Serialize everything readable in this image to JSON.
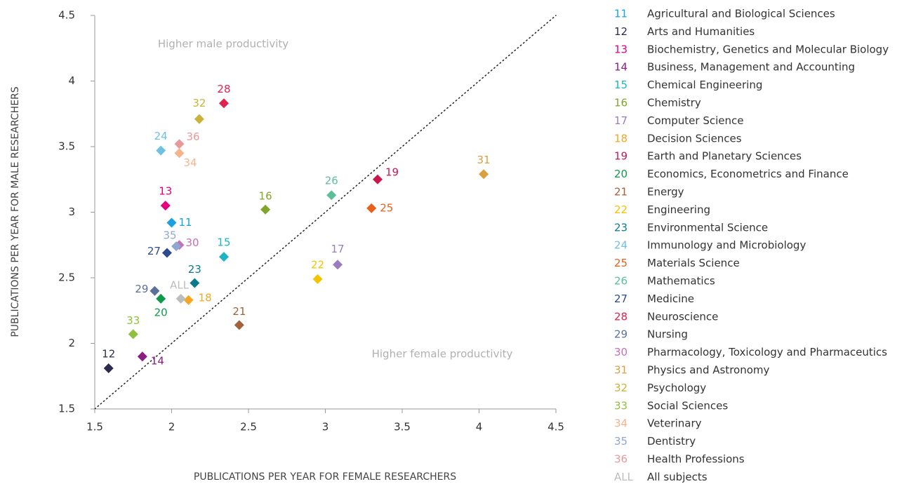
{
  "chart_data": {
    "type": "scatter",
    "x_label": "PUBLICATIONS PER YEAR FOR FEMALE RESEARCHERS",
    "y_label": "PUBLICATIONS PER YEAR FOR MALE RESEARCHERS",
    "annotations": [
      "Higher male productivity",
      "Higher female productivity"
    ],
    "xlim": [
      1.5,
      4.5
    ],
    "ylim": [
      1.5,
      4.5
    ],
    "xticks": [
      1.5,
      2,
      2.5,
      3,
      3.5,
      4,
      4.5
    ],
    "yticks": [
      1.5,
      2,
      2.5,
      3,
      3.5,
      4,
      4.5
    ],
    "series": [
      {
        "label": "11",
        "name": "Agricultural and Biological Sciences",
        "color": "#1ba1e2",
        "x": [
          2.0
        ],
        "values": [
          2.92
        ]
      },
      {
        "label": "12",
        "name": "Arts and Humanities",
        "color": "#2b2a4f",
        "x": [
          1.59
        ],
        "values": [
          1.81
        ]
      },
      {
        "label": "13",
        "name": "Biochemistry, Genetics and Molecular Biology",
        "color": "#e6007e",
        "x": [
          1.96
        ],
        "values": [
          3.05
        ]
      },
      {
        "label": "14",
        "name": "Business, Management and Accounting",
        "color": "#8b1d82",
        "x": [
          1.81
        ],
        "values": [
          1.9
        ]
      },
      {
        "label": "15",
        "name": "Chemical Engineering",
        "color": "#1bb5c4",
        "x": [
          2.34
        ],
        "values": [
          2.66
        ]
      },
      {
        "label": "16",
        "name": "Chemistry",
        "color": "#7fa52a",
        "x": [
          2.61
        ],
        "values": [
          3.02
        ]
      },
      {
        "label": "17",
        "name": "Computer Science",
        "color": "#9a7cbf",
        "x": [
          3.08
        ],
        "values": [
          2.6
        ]
      },
      {
        "label": "18",
        "name": "Decision Sciences",
        "color": "#f5a623",
        "x": [
          2.11
        ],
        "values": [
          2.33
        ]
      },
      {
        "label": "19",
        "name": "Earth and Planetary Sciences",
        "color": "#c8184e",
        "x": [
          3.34
        ],
        "values": [
          3.25
        ]
      },
      {
        "label": "20",
        "name": "Economics, Econometrics and Finance",
        "color": "#0f9a4a",
        "x": [
          1.93
        ],
        "values": [
          2.34
        ]
      },
      {
        "label": "21",
        "name": "Energy",
        "color": "#a0623b",
        "x": [
          2.44
        ],
        "values": [
          2.14
        ]
      },
      {
        "label": "22",
        "name": "Engineering",
        "color": "#f2c500",
        "x": [
          2.95
        ],
        "values": [
          2.49
        ]
      },
      {
        "label": "23",
        "name": "Environmental Science",
        "color": "#0a7a8c",
        "x": [
          2.15
        ],
        "values": [
          2.46
        ]
      },
      {
        "label": "24",
        "name": "Immunology and Microbiology",
        "color": "#6fc1e0",
        "x": [
          1.93
        ],
        "values": [
          3.47
        ]
      },
      {
        "label": "25",
        "name": "Materials Science",
        "color": "#e8601c",
        "x": [
          3.3
        ],
        "values": [
          3.03
        ]
      },
      {
        "label": "26",
        "name": "Mathematics",
        "color": "#5dbf9a",
        "x": [
          3.04
        ],
        "values": [
          3.13
        ]
      },
      {
        "label": "27",
        "name": "Medicine",
        "color": "#2e4a8f",
        "x": [
          1.97
        ],
        "values": [
          2.69
        ]
      },
      {
        "label": "28",
        "name": "Neuroscience",
        "color": "#e0234e",
        "x": [
          2.34
        ],
        "values": [
          3.83
        ]
      },
      {
        "label": "29",
        "name": "Nursing",
        "color": "#5a6f9a",
        "x": [
          1.89
        ],
        "values": [
          2.4
        ]
      },
      {
        "label": "30",
        "name": "Pharmacology, Toxicology and Pharmaceutics",
        "color": "#c76fb5",
        "x": [
          2.05
        ],
        "values": [
          2.75
        ]
      },
      {
        "label": "31",
        "name": "Physics and Astronomy",
        "color": "#d9a040",
        "x": [
          4.03
        ],
        "values": [
          3.29
        ]
      },
      {
        "label": "32",
        "name": "Psychology",
        "color": "#c9b33a",
        "x": [
          2.18
        ],
        "values": [
          3.71
        ]
      },
      {
        "label": "33",
        "name": "Social Sciences",
        "color": "#8fc13e",
        "x": [
          1.75
        ],
        "values": [
          2.07
        ]
      },
      {
        "label": "34",
        "name": "Veterinary",
        "color": "#f5b48c",
        "x": [
          2.05
        ],
        "values": [
          3.45
        ]
      },
      {
        "label": "35",
        "name": "Dentistry",
        "color": "#8fa6d0",
        "x": [
          2.03
        ],
        "values": [
          2.74
        ]
      },
      {
        "label": "36",
        "name": "Health Professions",
        "color": "#e89a9a",
        "x": [
          2.05
        ],
        "values": [
          3.52
        ]
      },
      {
        "label": "ALL",
        "name": "All subjects",
        "color": "#bdbdbd",
        "x": [
          2.06
        ],
        "values": [
          2.34
        ]
      }
    ]
  }
}
